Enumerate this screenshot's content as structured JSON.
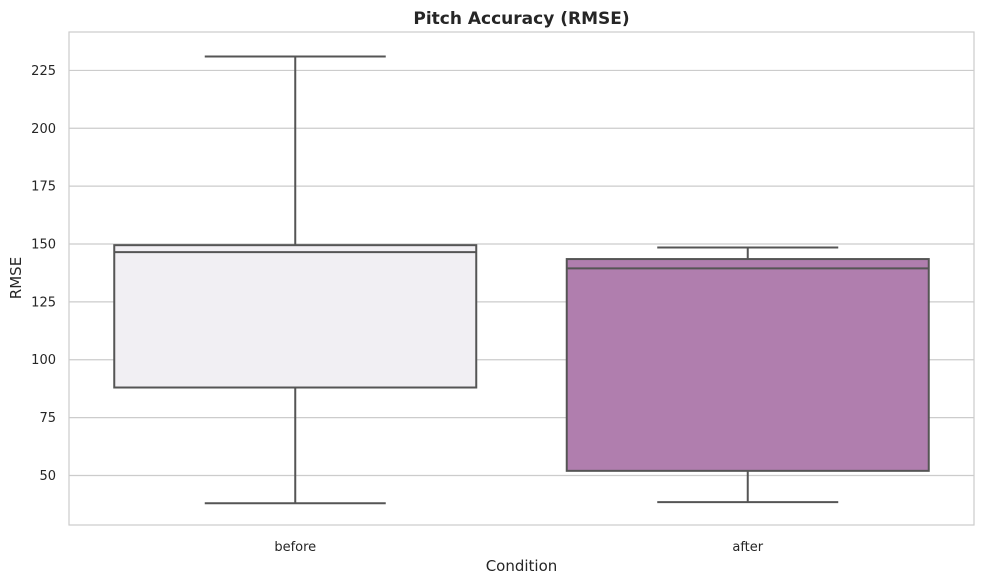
{
  "chart_data": {
    "type": "box",
    "title": "Pitch Accuracy (RMSE)",
    "xlabel": "Condition",
    "ylabel": "RMSE",
    "categories": [
      "before",
      "after"
    ],
    "ylim": [
      28.6,
      241.6
    ],
    "yticks": [
      50,
      75,
      100,
      125,
      150,
      175,
      200,
      225
    ],
    "grid": true,
    "legend": "none",
    "colors": {
      "grid": "#cccccc",
      "spine": "#cccccc",
      "box_edge": "#555555",
      "text": "#262626"
    },
    "boxes": [
      {
        "category": "before",
        "whisker_low": 38,
        "q1": 88,
        "median": 146.5,
        "q3": 149.5,
        "whisker_high": 231,
        "fill": "#f1eff3"
      },
      {
        "category": "after",
        "whisker_low": 38.5,
        "q1": 52,
        "median": 139.5,
        "q3": 143.5,
        "whisker_high": 148.5,
        "fill": "#b07eae"
      }
    ]
  }
}
